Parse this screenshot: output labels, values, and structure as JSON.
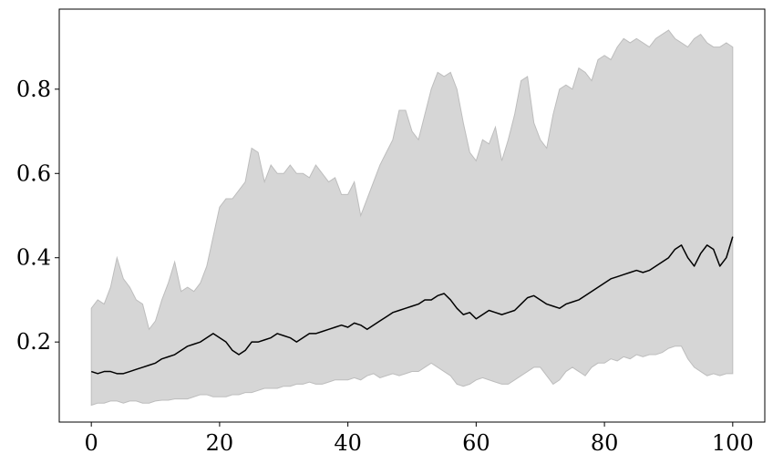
{
  "chart_data": {
    "type": "line",
    "title": "",
    "xlabel": "",
    "ylabel": "",
    "xlim": [
      -5,
      105
    ],
    "ylim": [
      0.01,
      0.99
    ],
    "x_ticks": [
      0,
      20,
      40,
      60,
      80,
      100
    ],
    "y_ticks": [
      0.2,
      0.4,
      0.6,
      0.8
    ],
    "x_tick_labels": [
      "0",
      "20",
      "40",
      "60",
      "80",
      "100"
    ],
    "y_tick_labels": [
      "0.2",
      "0.4",
      "0.6",
      "0.8"
    ],
    "grid": false,
    "legend": "none",
    "colors": {
      "line": "#000000",
      "band_fill": "#d6d6d6",
      "band_edge": "#bdbdbd",
      "axes": "#000000"
    },
    "x": [
      0,
      1,
      2,
      3,
      4,
      5,
      6,
      7,
      8,
      9,
      10,
      11,
      12,
      13,
      14,
      15,
      16,
      17,
      18,
      19,
      20,
      21,
      22,
      23,
      24,
      25,
      26,
      27,
      28,
      29,
      30,
      31,
      32,
      33,
      34,
      35,
      36,
      37,
      38,
      39,
      40,
      41,
      42,
      43,
      44,
      45,
      46,
      47,
      48,
      49,
      50,
      51,
      52,
      53,
      54,
      55,
      56,
      57,
      58,
      59,
      60,
      61,
      62,
      63,
      64,
      65,
      66,
      67,
      68,
      69,
      70,
      71,
      72,
      73,
      74,
      75,
      76,
      77,
      78,
      79,
      80,
      81,
      82,
      83,
      84,
      85,
      86,
      87,
      88,
      89,
      90,
      91,
      92,
      93,
      94,
      95,
      96,
      97,
      98,
      99,
      100
    ],
    "series": [
      {
        "role": "mean",
        "values": [
          0.13,
          0.125,
          0.13,
          0.13,
          0.125,
          0.125,
          0.13,
          0.135,
          0.14,
          0.145,
          0.15,
          0.16,
          0.165,
          0.17,
          0.18,
          0.19,
          0.195,
          0.2,
          0.21,
          0.22,
          0.21,
          0.2,
          0.18,
          0.17,
          0.18,
          0.2,
          0.2,
          0.205,
          0.21,
          0.22,
          0.215,
          0.21,
          0.2,
          0.21,
          0.22,
          0.22,
          0.225,
          0.23,
          0.235,
          0.24,
          0.235,
          0.245,
          0.24,
          0.23,
          0.24,
          0.25,
          0.26,
          0.27,
          0.275,
          0.28,
          0.285,
          0.29,
          0.3,
          0.3,
          0.31,
          0.315,
          0.3,
          0.28,
          0.265,
          0.27,
          0.255,
          0.265,
          0.275,
          0.27,
          0.265,
          0.27,
          0.275,
          0.29,
          0.305,
          0.31,
          0.3,
          0.29,
          0.285,
          0.28,
          0.29,
          0.295,
          0.3,
          0.31,
          0.32,
          0.33,
          0.34,
          0.35,
          0.355,
          0.36,
          0.365,
          0.37,
          0.365,
          0.37,
          0.38,
          0.39,
          0.4,
          0.42,
          0.43,
          0.4,
          0.38,
          0.41,
          0.43,
          0.42,
          0.38,
          0.4,
          0.45
        ]
      },
      {
        "role": "lower_bound",
        "values": [
          0.05,
          0.055,
          0.055,
          0.06,
          0.06,
          0.055,
          0.06,
          0.06,
          0.055,
          0.055,
          0.06,
          0.062,
          0.062,
          0.065,
          0.065,
          0.065,
          0.07,
          0.075,
          0.075,
          0.07,
          0.07,
          0.07,
          0.075,
          0.075,
          0.08,
          0.08,
          0.085,
          0.09,
          0.09,
          0.09,
          0.095,
          0.095,
          0.1,
          0.1,
          0.105,
          0.1,
          0.1,
          0.105,
          0.11,
          0.11,
          0.11,
          0.115,
          0.11,
          0.12,
          0.125,
          0.115,
          0.12,
          0.125,
          0.12,
          0.125,
          0.13,
          0.13,
          0.14,
          0.15,
          0.14,
          0.13,
          0.12,
          0.1,
          0.095,
          0.1,
          0.11,
          0.115,
          0.11,
          0.105,
          0.1,
          0.1,
          0.11,
          0.12,
          0.13,
          0.14,
          0.14,
          0.12,
          0.1,
          0.11,
          0.13,
          0.14,
          0.13,
          0.12,
          0.14,
          0.15,
          0.15,
          0.16,
          0.155,
          0.165,
          0.16,
          0.17,
          0.165,
          0.17,
          0.17,
          0.175,
          0.185,
          0.19,
          0.19,
          0.16,
          0.14,
          0.13,
          0.12,
          0.125,
          0.12,
          0.125,
          0.125
        ]
      },
      {
        "role": "upper_bound",
        "values": [
          0.28,
          0.3,
          0.29,
          0.33,
          0.4,
          0.35,
          0.33,
          0.3,
          0.29,
          0.23,
          0.25,
          0.3,
          0.34,
          0.39,
          0.32,
          0.33,
          0.32,
          0.34,
          0.38,
          0.45,
          0.52,
          0.54,
          0.54,
          0.56,
          0.58,
          0.66,
          0.65,
          0.58,
          0.62,
          0.6,
          0.6,
          0.62,
          0.6,
          0.6,
          0.59,
          0.62,
          0.6,
          0.58,
          0.59,
          0.55,
          0.55,
          0.58,
          0.5,
          0.54,
          0.58,
          0.62,
          0.65,
          0.68,
          0.75,
          0.75,
          0.7,
          0.68,
          0.74,
          0.8,
          0.84,
          0.83,
          0.84,
          0.8,
          0.72,
          0.65,
          0.63,
          0.68,
          0.67,
          0.71,
          0.63,
          0.68,
          0.74,
          0.82,
          0.83,
          0.72,
          0.68,
          0.66,
          0.74,
          0.8,
          0.81,
          0.8,
          0.85,
          0.84,
          0.82,
          0.87,
          0.88,
          0.87,
          0.9,
          0.92,
          0.91,
          0.92,
          0.91,
          0.9,
          0.92,
          0.93,
          0.94,
          0.92,
          0.91,
          0.9,
          0.92,
          0.93,
          0.91,
          0.9,
          0.9,
          0.91,
          0.9
        ]
      }
    ]
  }
}
